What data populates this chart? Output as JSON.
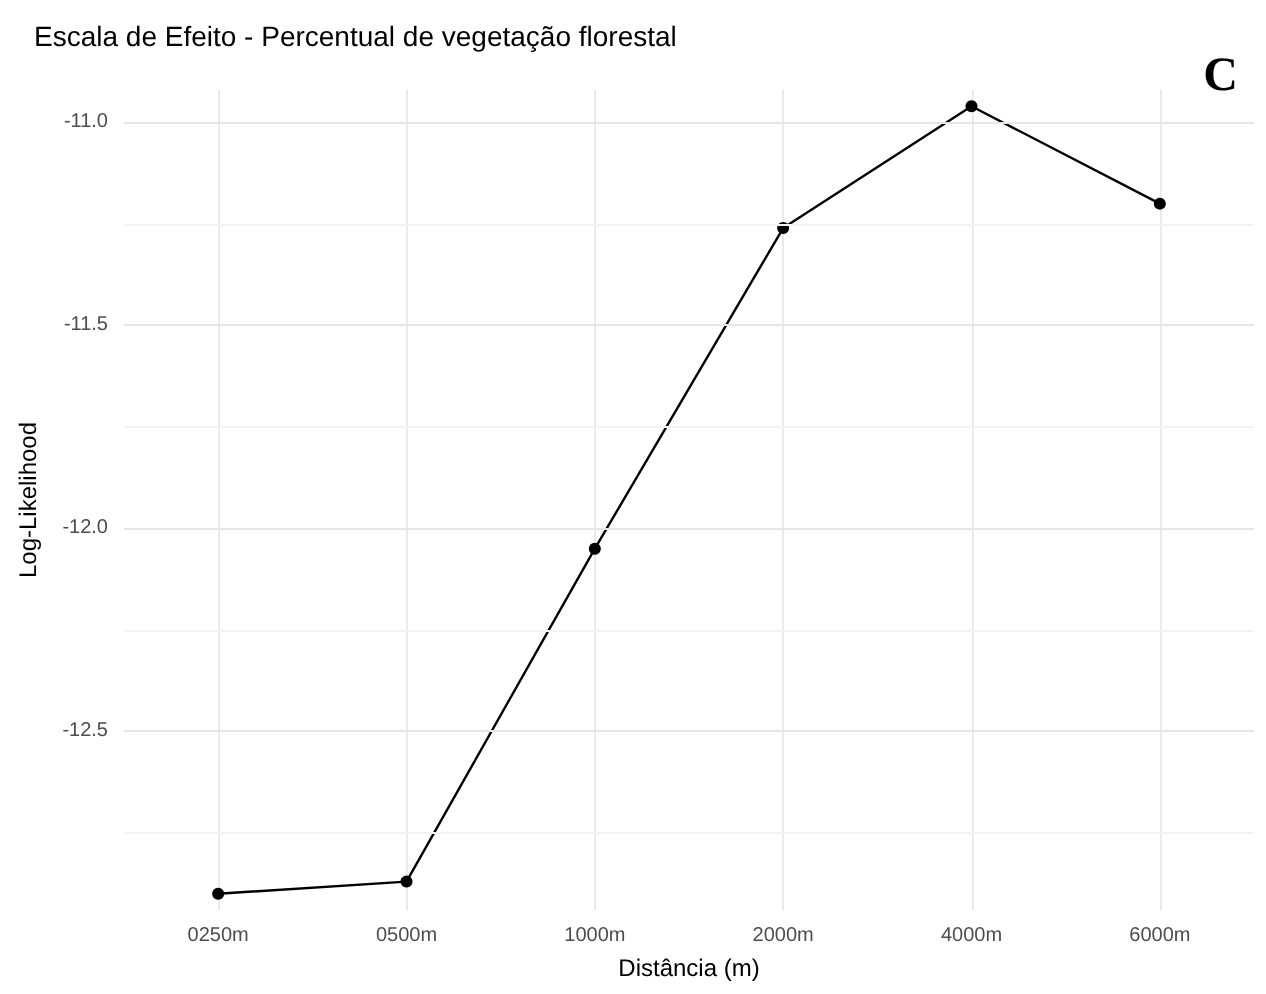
{
  "chart_data": {
    "type": "line",
    "title": "Escala de Efeito - Percentual de vegetação florestal",
    "xlabel": "Distância (m)",
    "ylabel": "Log-Likelihood",
    "annotations": [
      "C"
    ],
    "categories": [
      "0250m",
      "0500m",
      "1000m",
      "2000m",
      "4000m",
      "6000m"
    ],
    "series": [
      {
        "color": "#000000",
        "values": [
          -12.9,
          -12.87,
          -12.05,
          -11.26,
          -10.96,
          -11.2
        ]
      }
    ],
    "ylim": [
      -12.94,
      -10.92
    ],
    "yticks": [
      {
        "value": -12.5,
        "label": "-12.5"
      },
      {
        "value": -12,
        "label": "-12.0"
      },
      {
        "value": -11.5,
        "label": "-11.5"
      },
      {
        "value": -11,
        "label": "-11.0"
      }
    ],
    "grid": true,
    "marker": "circle",
    "line_style": "solid"
  }
}
